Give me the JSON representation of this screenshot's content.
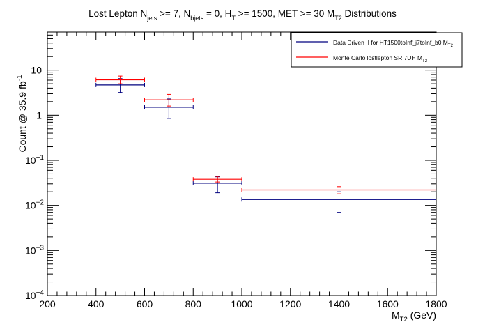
{
  "chart_data": {
    "type": "scatter",
    "title": {
      "main": "Lost Lepton N",
      "sub_jets": "jets",
      "part2": " >= 7, N",
      "sub_bjets": "bjets",
      "part3": " = 0, H",
      "sub_T": "T",
      "part4": " >= 1500, MET >= 30 M",
      "sub_T2": "T2",
      "part5": " Distributions"
    },
    "xlabel": {
      "main": "M",
      "sub": "T2",
      "rest": " (GeV)"
    },
    "ylabel": {
      "main": "Count @ 35.9 fb",
      "sup": "-1"
    },
    "xlim": [
      200,
      1800
    ],
    "ylim": [
      0.0001,
      70
    ],
    "yscale": "log",
    "x_ticks": [
      {
        "value": 200,
        "label": "200"
      },
      {
        "value": 400,
        "label": "400"
      },
      {
        "value": 600,
        "label": "600"
      },
      {
        "value": 800,
        "label": "800"
      },
      {
        "value": 1000,
        "label": "1000"
      },
      {
        "value": 1200,
        "label": "1200"
      },
      {
        "value": 1400,
        "label": "1400"
      },
      {
        "value": 1600,
        "label": "1600"
      },
      {
        "value": 1800,
        "label": "1800"
      }
    ],
    "y_ticks": [
      {
        "value": 10,
        "kind": "plain",
        "label": "10"
      },
      {
        "value": 1,
        "kind": "plain",
        "label": "1"
      },
      {
        "value": 0.1,
        "kind": "pow",
        "base": "10",
        "exp": "−1"
      },
      {
        "value": 0.01,
        "kind": "pow",
        "base": "10",
        "exp": "−2"
      },
      {
        "value": 0.001,
        "kind": "pow",
        "base": "10",
        "exp": "−3"
      },
      {
        "value": 0.0001,
        "kind": "pow",
        "base": "10",
        "exp": "−4"
      }
    ],
    "legend": {
      "placement": "top-right",
      "entries": [
        {
          "series": "data-driven",
          "label": "Data Driven II for HT1500toInf_j7toInf_b0 M",
          "sub": "T2"
        },
        {
          "series": "monte-carlo",
          "label": "Monte Carlo lostlepton SR 7UH M",
          "sub": "T2"
        }
      ]
    },
    "series": [
      {
        "key": "data-driven",
        "name": "Data Driven II for HT1500toInf_j7toInf_b0 MT2",
        "color": "#00007f",
        "points": [
          {
            "x": 500,
            "xlow": 400,
            "xhigh": 600,
            "y": 4.7,
            "ylow": 3.2,
            "yhigh": 6.5
          },
          {
            "x": 700,
            "xlow": 600,
            "xhigh": 800,
            "y": 1.5,
            "ylow": 0.85,
            "yhigh": 2.3
          },
          {
            "x": 900,
            "xlow": 800,
            "xhigh": 1000,
            "y": 0.031,
            "ylow": 0.019,
            "yhigh": 0.043
          },
          {
            "x": 1400,
            "xlow": 1000,
            "xhigh": 1800,
            "y": 0.0135,
            "ylow": 0.007,
            "yhigh": 0.02
          }
        ]
      },
      {
        "key": "monte-carlo",
        "name": "Monte Carlo lostlepton SR 7UH MT2",
        "color": "#ff0000",
        "points": [
          {
            "x": 500,
            "xlow": 400,
            "xhigh": 600,
            "y": 6.1,
            "ylow": 5.0,
            "yhigh": 7.4
          },
          {
            "x": 700,
            "xlow": 600,
            "xhigh": 800,
            "y": 2.2,
            "ylow": 1.6,
            "yhigh": 2.9
          },
          {
            "x": 900,
            "xlow": 800,
            "xhigh": 1000,
            "y": 0.038,
            "ylow": 0.033,
            "yhigh": 0.044
          },
          {
            "x": 1400,
            "xlow": 1000,
            "xhigh": 1800,
            "y": 0.022,
            "ylow": 0.018,
            "yhigh": 0.026
          }
        ]
      }
    ]
  }
}
